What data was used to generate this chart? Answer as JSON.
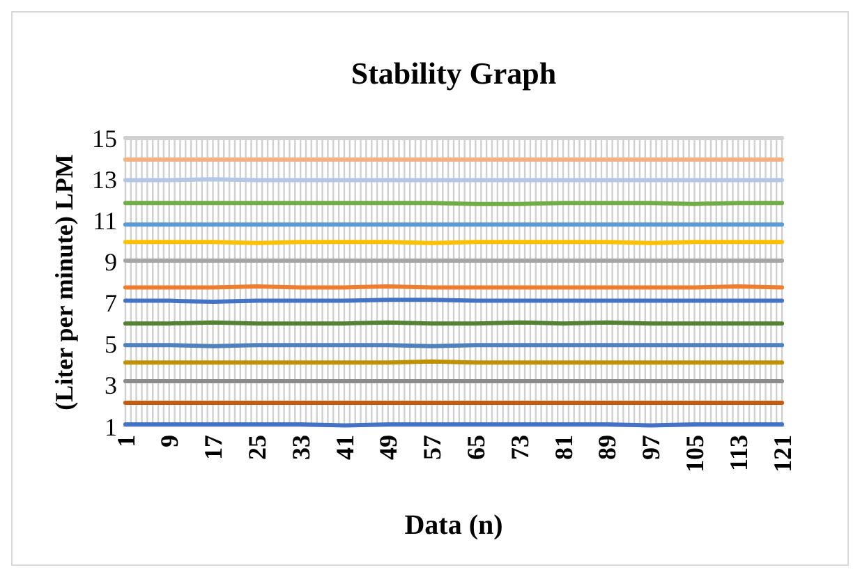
{
  "chart_data": {
    "type": "line",
    "title": "Stability Graph",
    "xlabel": "Data (n)",
    "ylabel": "(Liter per minute) LPM",
    "x": [
      1,
      9,
      17,
      25,
      33,
      41,
      49,
      57,
      65,
      73,
      81,
      89,
      97,
      105,
      113,
      121
    ],
    "xlim": [
      0.5,
      121.5
    ],
    "xticks": [
      1,
      {
        "value": 2,
        "label": null
      },
      {
        "value": 3,
        "label": null
      },
      {
        "value": 4,
        "label": null
      },
      {
        "value": 5,
        "label": null
      },
      {
        "value": 6,
        "label": null
      },
      {
        "value": 7,
        "label": null
      },
      {
        "value": 8,
        "label": null
      },
      9,
      {
        "value": 10,
        "label": null
      },
      {
        "value": 11,
        "label": null
      },
      {
        "value": 12,
        "label": null
      },
      {
        "value": 13,
        "label": null
      },
      {
        "value": 14,
        "label": null
      },
      {
        "value": 15,
        "label": null
      },
      {
        "value": 16,
        "label": null
      },
      17,
      {
        "value": 18,
        "label": null
      },
      {
        "value": 19,
        "label": null
      },
      {
        "value": 20,
        "label": null
      },
      {
        "value": 21,
        "label": null
      },
      {
        "value": 22,
        "label": null
      },
      {
        "value": 23,
        "label": null
      },
      {
        "value": 24,
        "label": null
      },
      25,
      {
        "value": 26,
        "label": null
      },
      {
        "value": 27,
        "label": null
      },
      {
        "value": 28,
        "label": null
      },
      {
        "value": 29,
        "label": null
      },
      {
        "value": 30,
        "label": null
      },
      {
        "value": 31,
        "label": null
      },
      {
        "value": 32,
        "label": null
      },
      33,
      {
        "value": 34,
        "label": null
      },
      {
        "value": 35,
        "label": null
      },
      {
        "value": 36,
        "label": null
      },
      {
        "value": 37,
        "label": null
      },
      {
        "value": 38,
        "label": null
      },
      {
        "value": 39,
        "label": null
      },
      {
        "value": 40,
        "label": null
      },
      41,
      {
        "value": 42,
        "label": null
      },
      {
        "value": 43,
        "label": null
      },
      {
        "value": 44,
        "label": null
      },
      {
        "value": 45,
        "label": null
      },
      {
        "value": 46,
        "label": null
      },
      {
        "value": 47,
        "label": null
      },
      {
        "value": 48,
        "label": null
      },
      49,
      {
        "value": 50,
        "label": null
      },
      {
        "value": 51,
        "label": null
      },
      {
        "value": 52,
        "label": null
      },
      {
        "value": 53,
        "label": null
      },
      {
        "value": 54,
        "label": null
      },
      {
        "value": 55,
        "label": null
      },
      {
        "value": 56,
        "label": null
      },
      57,
      {
        "value": 58,
        "label": null
      },
      {
        "value": 59,
        "label": null
      },
      {
        "value": 60,
        "label": null
      },
      {
        "value": 61,
        "label": null
      },
      {
        "value": 62,
        "label": null
      },
      {
        "value": 63,
        "label": null
      },
      {
        "value": 64,
        "label": null
      },
      65,
      {
        "value": 66,
        "label": null
      },
      {
        "value": 67,
        "label": null
      },
      {
        "value": 68,
        "label": null
      },
      {
        "value": 69,
        "label": null
      },
      {
        "value": 70,
        "label": null
      },
      {
        "value": 71,
        "label": null
      },
      {
        "value": 72,
        "label": null
      },
      73,
      {
        "value": 74,
        "label": null
      },
      {
        "value": 75,
        "label": null
      },
      {
        "value": 76,
        "label": null
      },
      {
        "value": 77,
        "label": null
      },
      {
        "value": 78,
        "label": null
      },
      {
        "value": 79,
        "label": null
      },
      {
        "value": 80,
        "label": null
      },
      81,
      {
        "value": 82,
        "label": null
      },
      {
        "value": 83,
        "label": null
      },
      {
        "value": 84,
        "label": null
      },
      {
        "value": 85,
        "label": null
      },
      {
        "value": 86,
        "label": null
      },
      {
        "value": 87,
        "label": null
      },
      {
        "value": 88,
        "label": null
      },
      89,
      {
        "value": 90,
        "label": null
      },
      {
        "value": 91,
        "label": null
      },
      {
        "value": 92,
        "label": null
      },
      {
        "value": 93,
        "label": null
      },
      {
        "value": 94,
        "label": null
      },
      {
        "value": 95,
        "label": null
      },
      {
        "value": 96,
        "label": null
      },
      97,
      {
        "value": 98,
        "label": null
      },
      {
        "value": 99,
        "label": null
      },
      {
        "value": 100,
        "label": null
      },
      {
        "value": 101,
        "label": null
      },
      {
        "value": 102,
        "label": null
      },
      {
        "value": 103,
        "label": null
      },
      {
        "value": 104,
        "label": null
      },
      105,
      {
        "value": 106,
        "label": null
      },
      {
        "value": 107,
        "label": null
      },
      {
        "value": 108,
        "label": null
      },
      {
        "value": 109,
        "label": null
      },
      {
        "value": 110,
        "label": null
      },
      {
        "value": 111,
        "label": null
      },
      {
        "value": 112,
        "label": null
      },
      113,
      {
        "value": 114,
        "label": null
      },
      {
        "value": 115,
        "label": null
      },
      {
        "value": 116,
        "label": null
      },
      {
        "value": 117,
        "label": null
      },
      {
        "value": 118,
        "label": null
      },
      {
        "value": 119,
        "label": null
      },
      {
        "value": 120,
        "label": null
      },
      121
    ],
    "ylim": [
      1,
      15
    ],
    "yticks": [
      1,
      3,
      5,
      7,
      9,
      11,
      13,
      15
    ],
    "grid": "x",
    "marker": "none",
    "line_style": "solid",
    "series": [
      {
        "color": "#4472c4",
        "values": [
          1.1,
          1.1,
          1.1,
          1.1,
          1.1,
          1.05,
          1.1,
          1.1,
          1.1,
          1.1,
          1.1,
          1.1,
          1.05,
          1.1,
          1.1,
          1.1
        ]
      },
      {
        "color": "#c55a11",
        "values": [
          2.15,
          2.15,
          2.15,
          2.15,
          2.15,
          2.15,
          2.15,
          2.15,
          2.15,
          2.15,
          2.15,
          2.15,
          2.15,
          2.15,
          2.15,
          2.15
        ]
      },
      {
        "color": "#8c8c8c",
        "values": [
          3.2,
          3.2,
          3.2,
          3.2,
          3.2,
          3.2,
          3.2,
          3.2,
          3.2,
          3.2,
          3.2,
          3.2,
          3.2,
          3.2,
          3.2,
          3.2
        ]
      },
      {
        "color": "#bf9000",
        "values": [
          4.1,
          4.1,
          4.1,
          4.1,
          4.1,
          4.1,
          4.1,
          4.15,
          4.1,
          4.1,
          4.1,
          4.1,
          4.1,
          4.1,
          4.1,
          4.1
        ]
      },
      {
        "color": "#4f81bd",
        "values": [
          4.95,
          4.95,
          4.9,
          4.95,
          4.95,
          4.95,
          4.95,
          4.9,
          4.95,
          4.95,
          4.95,
          4.95,
          4.95,
          4.95,
          4.95,
          4.95
        ]
      },
      {
        "color": "#548235",
        "values": [
          6.0,
          6.0,
          6.05,
          6.0,
          6.0,
          6.0,
          6.05,
          6.0,
          6.0,
          6.05,
          6.0,
          6.05,
          6.0,
          6.0,
          6.0,
          6.0
        ]
      },
      {
        "color": "#4472c4",
        "values": [
          7.1,
          7.1,
          7.05,
          7.1,
          7.1,
          7.1,
          7.15,
          7.15,
          7.1,
          7.1,
          7.1,
          7.1,
          7.1,
          7.1,
          7.1,
          7.1
        ]
      },
      {
        "color": "#ed7d31",
        "values": [
          7.75,
          7.75,
          7.75,
          7.8,
          7.75,
          7.75,
          7.8,
          7.75,
          7.75,
          7.75,
          7.75,
          7.75,
          7.75,
          7.75,
          7.8,
          7.75
        ]
      },
      {
        "color": "#a5a5a5",
        "values": [
          9.05,
          9.05,
          9.05,
          9.05,
          9.05,
          9.05,
          9.05,
          9.05,
          9.05,
          9.05,
          9.05,
          9.05,
          9.05,
          9.05,
          9.05,
          9.05
        ]
      },
      {
        "color": "#ffc000",
        "values": [
          9.95,
          9.95,
          9.95,
          9.9,
          9.95,
          9.95,
          9.95,
          9.9,
          9.95,
          9.95,
          9.95,
          9.95,
          9.9,
          9.95,
          9.95,
          9.95
        ]
      },
      {
        "color": "#5b9bd5",
        "values": [
          10.8,
          10.8,
          10.8,
          10.8,
          10.8,
          10.8,
          10.8,
          10.8,
          10.8,
          10.8,
          10.8,
          10.8,
          10.8,
          10.8,
          10.8,
          10.8
        ]
      },
      {
        "color": "#70ad47",
        "values": [
          11.85,
          11.85,
          11.85,
          11.85,
          11.85,
          11.85,
          11.85,
          11.85,
          11.8,
          11.8,
          11.85,
          11.85,
          11.85,
          11.8,
          11.85,
          11.85
        ]
      },
      {
        "color": "#b4c7e7",
        "values": [
          12.95,
          12.95,
          13.0,
          12.95,
          12.95,
          12.95,
          12.95,
          12.95,
          12.95,
          12.95,
          12.95,
          12.95,
          12.95,
          12.95,
          12.95,
          12.95
        ]
      },
      {
        "color": "#f4b183",
        "values": [
          13.95,
          13.95,
          13.95,
          13.95,
          13.95,
          13.95,
          13.95,
          13.95,
          13.95,
          13.95,
          13.95,
          13.95,
          13.95,
          13.95,
          13.95,
          13.95
        ]
      },
      {
        "color": "#d0d0d0",
        "values": [
          15.0,
          15.0,
          15.0,
          15.0,
          15.0,
          15.0,
          15.0,
          15.0,
          15.0,
          15.0,
          15.0,
          15.0,
          15.0,
          15.0,
          15.0,
          15.0
        ]
      }
    ]
  }
}
